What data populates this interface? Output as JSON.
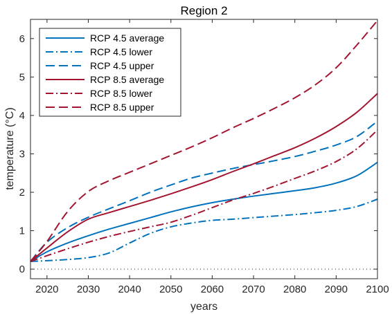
{
  "chart_data": {
    "type": "line",
    "title": "Region 2",
    "xlabel": "years",
    "ylabel": "temperature (°C)",
    "xlim": [
      2016,
      2100
    ],
    "ylim": [
      -0.25,
      6.5
    ],
    "xticks": [
      2020,
      2030,
      2040,
      2050,
      2060,
      2070,
      2080,
      2090,
      2100
    ],
    "yticks": [
      0,
      1,
      2,
      3,
      4,
      5,
      6
    ],
    "grid": false,
    "legend_position": "top-left",
    "reference_line": {
      "y": 0,
      "style": "dotted"
    },
    "x": [
      2016,
      2020,
      2025,
      2030,
      2035,
      2040,
      2045,
      2050,
      2055,
      2060,
      2065,
      2070,
      2075,
      2080,
      2085,
      2090,
      2095,
      2100
    ],
    "series": [
      {
        "name": "RCP 4.5 average",
        "color": "#0072BD",
        "dash": "solid",
        "values": [
          0.2,
          0.45,
          0.68,
          0.87,
          1.04,
          1.19,
          1.34,
          1.49,
          1.62,
          1.73,
          1.82,
          1.9,
          1.97,
          2.04,
          2.12,
          2.24,
          2.43,
          2.78
        ]
      },
      {
        "name": "RCP 4.5 lower",
        "color": "#0072BD",
        "dash": "dashdot",
        "values": [
          0.2,
          0.22,
          0.25,
          0.3,
          0.42,
          0.68,
          0.93,
          1.1,
          1.2,
          1.27,
          1.3,
          1.34,
          1.38,
          1.42,
          1.47,
          1.53,
          1.63,
          1.82
        ]
      },
      {
        "name": "RCP 4.5 upper",
        "color": "#0072BD",
        "dash": "dashed",
        "values": [
          0.2,
          0.7,
          1.08,
          1.35,
          1.57,
          1.78,
          2.0,
          2.19,
          2.37,
          2.5,
          2.62,
          2.72,
          2.82,
          2.93,
          3.07,
          3.23,
          3.45,
          3.85
        ]
      },
      {
        "name": "RCP 8.5 average",
        "color": "#A2142F",
        "dash": "solid",
        "values": [
          0.2,
          0.55,
          0.97,
          1.3,
          1.47,
          1.63,
          1.79,
          1.96,
          2.14,
          2.33,
          2.54,
          2.74,
          2.95,
          3.16,
          3.41,
          3.71,
          4.08,
          4.57
        ]
      },
      {
        "name": "RCP 8.5 lower",
        "color": "#A2142F",
        "dash": "dashdot",
        "values": [
          0.2,
          0.35,
          0.53,
          0.7,
          0.85,
          0.98,
          1.1,
          1.22,
          1.4,
          1.6,
          1.8,
          1.97,
          2.16,
          2.36,
          2.56,
          2.8,
          3.13,
          3.62
        ]
      },
      {
        "name": "RCP 8.5 upper",
        "color": "#A2142F",
        "dash": "dashed",
        "values": [
          0.2,
          0.72,
          1.5,
          2.02,
          2.3,
          2.52,
          2.74,
          2.96,
          3.18,
          3.42,
          3.68,
          3.92,
          4.18,
          4.46,
          4.8,
          5.24,
          5.83,
          6.47
        ]
      }
    ]
  }
}
